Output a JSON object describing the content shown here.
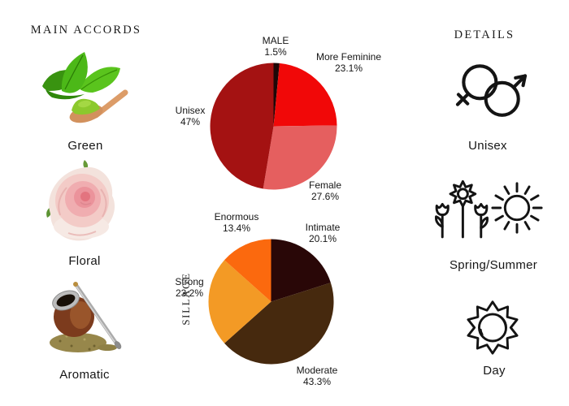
{
  "headings": {
    "main_accords": "MAIN ACCORDS",
    "details": "DETAILS"
  },
  "accords": [
    {
      "label": "Green",
      "image": "green-tea-leaves-with-matcha-spoon"
    },
    {
      "label": "Floral",
      "image": "pink-rose"
    },
    {
      "label": "Aromatic",
      "image": "yerba-mate-gourd-with-bombilla"
    }
  ],
  "details_items": [
    {
      "label": "Unisex",
      "icon": "unisex-gender-symbol-icon"
    },
    {
      "label": "Spring/Summer",
      "icon": "flowers-and-sun-icons"
    },
    {
      "label": "Day",
      "icon": "spiky-sun-icon"
    }
  ],
  "chart_data": [
    {
      "type": "pie",
      "name": "gender",
      "title": "",
      "direction": "clockwise",
      "start_angle": "12-oclock",
      "legend_position": "none",
      "slices": [
        {
          "label": "MALE",
          "pct": "1.5%",
          "value": 1.5,
          "color": "#1e0808"
        },
        {
          "label": "More Feminine",
          "pct": "23.1%",
          "value": 23.1,
          "color": "#f10808"
        },
        {
          "label": "Female",
          "pct": "27.6%",
          "value": 27.6,
          "color": "#e55f5f"
        },
        {
          "label": "Unisex",
          "pct": "47%",
          "value": 47.0,
          "color": "#a41212"
        }
      ]
    },
    {
      "type": "pie",
      "name": "sillage",
      "title": "SILLAGE",
      "direction": "clockwise",
      "start_angle": "12-oclock",
      "legend_position": "none",
      "slices": [
        {
          "label": "Intimate",
          "pct": "20.1%",
          "value": 20.1,
          "color": "#290707"
        },
        {
          "label": "Moderate",
          "pct": "43.3%",
          "value": 43.3,
          "color": "#46290e"
        },
        {
          "label": "Strong",
          "pct": "23.2%",
          "value": 23.2,
          "color": "#f39a25"
        },
        {
          "label": "Enormous",
          "pct": "13.4%",
          "value": 13.4,
          "color": "#fb690e"
        }
      ]
    }
  ]
}
